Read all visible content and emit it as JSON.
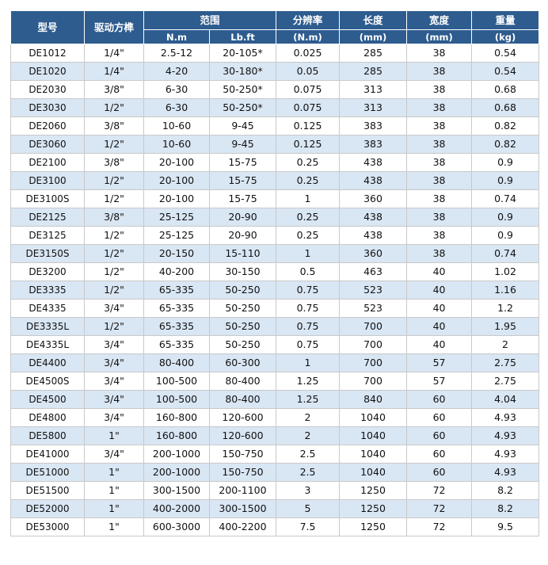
{
  "headers": {
    "model": "型号",
    "drive": "驱动方榫",
    "range": "范围",
    "range_nm": "N.m",
    "range_lbft": "Lb.ft",
    "resolution": "分辨率",
    "resolution_unit": "(N.m)",
    "length": "长度",
    "length_unit": "(mm)",
    "width": "宽度",
    "width_unit": "(mm)",
    "weight": "重量",
    "weight_unit": "(kg)"
  },
  "rows": [
    [
      "DE1012",
      "1/4\"",
      "2.5-12",
      "20-105*",
      "0.025",
      "285",
      "38",
      "0.54"
    ],
    [
      "DE1020",
      "1/4\"",
      "4-20",
      "30-180*",
      "0.05",
      "285",
      "38",
      "0.54"
    ],
    [
      "DE2030",
      "3/8\"",
      "6-30",
      "50-250*",
      "0.075",
      "313",
      "38",
      "0.68"
    ],
    [
      "DE3030",
      "1/2\"",
      "6-30",
      "50-250*",
      "0.075",
      "313",
      "38",
      "0.68"
    ],
    [
      "DE2060",
      "3/8\"",
      "10-60",
      "9-45",
      "0.125",
      "383",
      "38",
      "0.82"
    ],
    [
      "DE3060",
      "1/2\"",
      "10-60",
      "9-45",
      "0.125",
      "383",
      "38",
      "0.82"
    ],
    [
      "DE2100",
      "3/8\"",
      "20-100",
      "15-75",
      "0.25",
      "438",
      "38",
      "0.9"
    ],
    [
      "DE3100",
      "1/2\"",
      "20-100",
      "15-75",
      "0.25",
      "438",
      "38",
      "0.9"
    ],
    [
      "DE3100S",
      "1/2\"",
      "20-100",
      "15-75",
      "1",
      "360",
      "38",
      "0.74"
    ],
    [
      "DE2125",
      "3/8\"",
      "25-125",
      "20-90",
      "0.25",
      "438",
      "38",
      "0.9"
    ],
    [
      "DE3125",
      "1/2\"",
      "25-125",
      "20-90",
      "0.25",
      "438",
      "38",
      "0.9"
    ],
    [
      "DE3150S",
      "1/2\"",
      "20-150",
      "15-110",
      "1",
      "360",
      "38",
      "0.74"
    ],
    [
      "DE3200",
      "1/2\"",
      "40-200",
      "30-150",
      "0.5",
      "463",
      "40",
      "1.02"
    ],
    [
      "DE3335",
      "1/2\"",
      "65-335",
      "50-250",
      "0.75",
      "523",
      "40",
      "1.16"
    ],
    [
      "DE4335",
      "3/4\"",
      "65-335",
      "50-250",
      "0.75",
      "523",
      "40",
      "1.2"
    ],
    [
      "DE3335L",
      "1/2\"",
      "65-335",
      "50-250",
      "0.75",
      "700",
      "40",
      "1.95"
    ],
    [
      "DE4335L",
      "3/4\"",
      "65-335",
      "50-250",
      "0.75",
      "700",
      "40",
      "2"
    ],
    [
      "DE4400",
      "3/4\"",
      "80-400",
      "60-300",
      "1",
      "700",
      "57",
      "2.75"
    ],
    [
      "DE4500S",
      "3/4\"",
      "100-500",
      "80-400",
      "1.25",
      "700",
      "57",
      "2.75"
    ],
    [
      "DE4500",
      "3/4\"",
      "100-500",
      "80-400",
      "1.25",
      "840",
      "60",
      "4.04"
    ],
    [
      "DE4800",
      "3/4\"",
      "160-800",
      "120-600",
      "2",
      "1040",
      "60",
      "4.93"
    ],
    [
      "DE5800",
      "1\"",
      "160-800",
      "120-600",
      "2",
      "1040",
      "60",
      "4.93"
    ],
    [
      "DE41000",
      "3/4\"",
      "200-1000",
      "150-750",
      "2.5",
      "1040",
      "60",
      "4.93"
    ],
    [
      "DE51000",
      "1\"",
      "200-1000",
      "150-750",
      "2.5",
      "1040",
      "60",
      "4.93"
    ],
    [
      "DE51500",
      "1\"",
      "300-1500",
      "200-1100",
      "3",
      "1250",
      "72",
      "8.2"
    ],
    [
      "DE52000",
      "1\"",
      "400-2000",
      "300-1500",
      "5",
      "1250",
      "72",
      "8.2"
    ],
    [
      "DE53000",
      "1\"",
      "600-3000",
      "400-2200",
      "7.5",
      "1250",
      "72",
      "9.5"
    ]
  ]
}
